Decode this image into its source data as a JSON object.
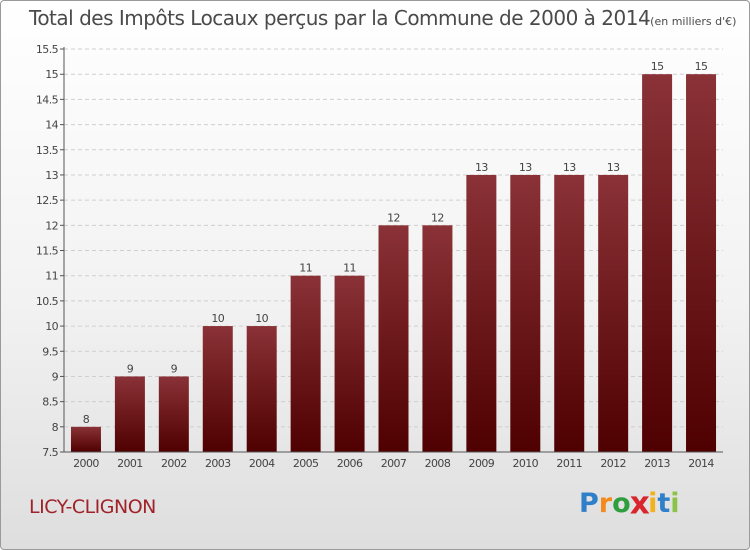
{
  "header": {
    "title": "Total des Impôts Locaux perçus par la Commune de 2000 à 2014",
    "unit": "(en milliers d'€)"
  },
  "footer": {
    "commune": "LICY-CLIGNON",
    "brand_letters": [
      {
        "char": "P",
        "color": "#2f7fc9"
      },
      {
        "char": "r",
        "color": "#f28a1e"
      },
      {
        "char": "o",
        "color": "#2f9e3e"
      },
      {
        "char": "x",
        "color": "#d9262c"
      },
      {
        "char": "i",
        "color": "#f2b21e"
      },
      {
        "char": "t",
        "color": "#2f7fc9"
      },
      {
        "char": "i",
        "color": "#8bc34a"
      }
    ]
  },
  "chart_data": {
    "type": "bar",
    "title": "Total des Impôts Locaux perçus par la Commune de 2000 à 2014",
    "unit": "(en milliers d'€)",
    "categories": [
      "2000",
      "2001",
      "2002",
      "2003",
      "2004",
      "2005",
      "2006",
      "2007",
      "2008",
      "2009",
      "2010",
      "2011",
      "2012",
      "2013",
      "2014"
    ],
    "values": [
      8,
      9,
      9,
      10,
      10,
      11,
      11,
      12,
      12,
      13,
      13,
      13,
      13,
      15,
      15
    ],
    "labels": [
      "8",
      "9",
      "9",
      "10",
      "10",
      "11",
      "11",
      "12",
      "12",
      "13",
      "13",
      "13",
      "13",
      "15",
      "15"
    ],
    "ylim": [
      7.5,
      15.5
    ],
    "yticks": [
      7.5,
      8,
      8.5,
      9,
      9.5,
      10,
      10.5,
      11,
      11.5,
      12,
      12.5,
      13,
      13.5,
      14,
      14.5,
      15,
      15.5
    ],
    "ytick_labels": [
      "7.5",
      "8",
      "8.5",
      "9",
      "9.5",
      "10",
      "10.5",
      "11",
      "11.5",
      "12",
      "12.5",
      "13",
      "13.5",
      "14",
      "14.5",
      "15",
      "15.5"
    ],
    "grid": true,
    "bar_color_top": "#8a3237",
    "bar_color_bottom": "#4f0000",
    "grid_color": "#cfcfcf"
  }
}
